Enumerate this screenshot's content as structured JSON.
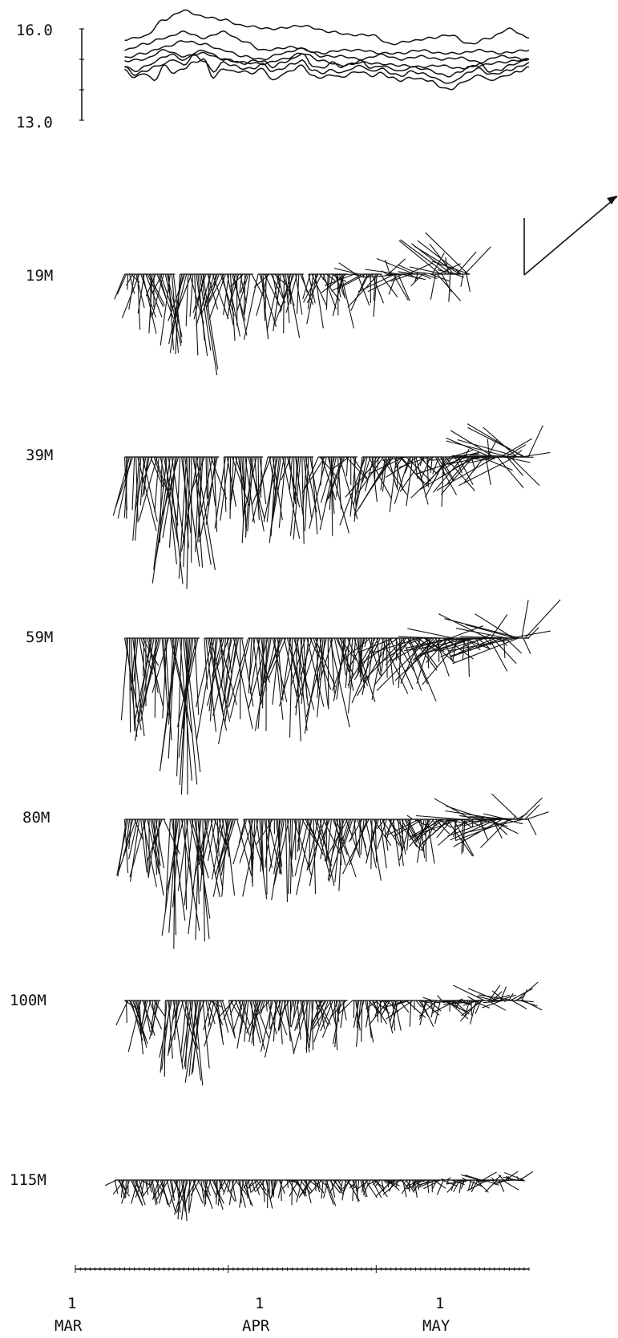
{
  "chart_data": [
    {
      "type": "line",
      "title": "",
      "ylabel": "",
      "y_tick_labels": [
        "16.0",
        "13.0"
      ],
      "ylim": [
        13.0,
        16.0
      ],
      "grid": false,
      "x_tick_labels": [
        {
          "day": "1",
          "month": "MAR"
        },
        {
          "day": "1",
          "month": "APR"
        },
        {
          "day": "1",
          "month": "MAY"
        }
      ],
      "x_range_days_from_mar1": [
        0,
        92
      ],
      "x_data_range_days_from_mar1": [
        10,
        92
      ],
      "series": [
        {
          "anchors": [
            [
              10,
              15.65
            ],
            [
              14,
              15.75
            ],
            [
              18,
              16.3
            ],
            [
              22,
              16.6
            ],
            [
              26,
              16.4
            ],
            [
              30,
              16.3
            ],
            [
              34,
              16.1
            ],
            [
              40,
              16.0
            ],
            [
              46,
              16.1
            ],
            [
              52,
              15.9
            ],
            [
              56,
              15.8
            ],
            [
              60,
              15.8
            ],
            [
              64,
              15.5
            ],
            [
              68,
              15.6
            ],
            [
              72,
              15.7
            ],
            [
              76,
              15.8
            ],
            [
              80,
              15.5
            ],
            [
              84,
              15.7
            ],
            [
              88,
              16.0
            ],
            [
              92,
              15.7
            ]
          ]
        },
        {
          "anchors": [
            [
              10,
              15.3
            ],
            [
              14,
              15.5
            ],
            [
              18,
              15.7
            ],
            [
              22,
              15.9
            ],
            [
              26,
              15.7
            ],
            [
              30,
              15.9
            ],
            [
              34,
              15.6
            ],
            [
              38,
              15.3
            ],
            [
              44,
              15.4
            ],
            [
              50,
              15.2
            ],
            [
              54,
              15.3
            ],
            [
              58,
              15.3
            ],
            [
              62,
              15.2
            ],
            [
              66,
              15.2
            ],
            [
              70,
              15.3
            ],
            [
              74,
              15.2
            ],
            [
              78,
              15.2
            ],
            [
              82,
              15.3
            ],
            [
              86,
              15.2
            ],
            [
              92,
              15.3
            ]
          ]
        },
        {
          "anchors": [
            [
              10,
              15.05
            ],
            [
              14,
              15.2
            ],
            [
              18,
              15.4
            ],
            [
              22,
              15.6
            ],
            [
              26,
              15.5
            ],
            [
              30,
              15.3
            ],
            [
              34,
              15.1
            ],
            [
              38,
              15.0
            ],
            [
              42,
              15.2
            ],
            [
              46,
              15.35
            ],
            [
              50,
              15.1
            ],
            [
              54,
              15.1
            ],
            [
              58,
              15.0
            ],
            [
              62,
              15.15
            ],
            [
              66,
              15.0
            ],
            [
              70,
              15.1
            ],
            [
              74,
              15.0
            ],
            [
              78,
              15.05
            ],
            [
              82,
              14.9
            ],
            [
              86,
              15.1
            ],
            [
              92,
              15.0
            ]
          ]
        },
        {
          "anchors": [
            [
              10,
              14.95
            ],
            [
              14,
              15.0
            ],
            [
              18,
              15.3
            ],
            [
              22,
              15.1
            ],
            [
              26,
              15.2
            ],
            [
              30,
              15.0
            ],
            [
              34,
              14.9
            ],
            [
              38,
              14.85
            ],
            [
              42,
              15.0
            ],
            [
              46,
              15.2
            ],
            [
              50,
              14.95
            ],
            [
              54,
              14.8
            ],
            [
              58,
              14.9
            ],
            [
              62,
              14.85
            ],
            [
              66,
              14.8
            ],
            [
              70,
              14.75
            ],
            [
              74,
              14.8
            ],
            [
              78,
              14.7
            ],
            [
              82,
              14.8
            ],
            [
              86,
              14.9
            ],
            [
              92,
              15.0
            ]
          ]
        },
        {
          "anchors": [
            [
              10,
              14.8
            ],
            [
              12,
              14.6
            ],
            [
              14,
              14.75
            ],
            [
              16,
              14.9
            ],
            [
              18,
              15.1
            ],
            [
              20,
              15.15
            ],
            [
              22,
              14.95
            ],
            [
              24,
              15.2
            ],
            [
              26,
              15.3
            ],
            [
              28,
              15.15
            ],
            [
              30,
              15.0
            ],
            [
              32,
              14.95
            ],
            [
              34,
              14.85
            ],
            [
              36,
              14.95
            ],
            [
              38,
              14.95
            ],
            [
              40,
              14.75
            ],
            [
              42,
              14.9
            ],
            [
              44,
              15.0
            ],
            [
              46,
              15.2
            ],
            [
              48,
              14.8
            ],
            [
              50,
              14.7
            ],
            [
              52,
              14.9
            ],
            [
              54,
              14.75
            ],
            [
              56,
              14.85
            ],
            [
              58,
              14.95
            ],
            [
              60,
              14.7
            ],
            [
              62,
              14.8
            ],
            [
              64,
              14.7
            ],
            [
              66,
              14.6
            ],
            [
              68,
              14.75
            ],
            [
              70,
              14.7
            ],
            [
              72,
              14.65
            ],
            [
              74,
              14.5
            ],
            [
              76,
              14.45
            ],
            [
              78,
              14.6
            ],
            [
              80,
              14.75
            ],
            [
              82,
              14.85
            ],
            [
              84,
              14.6
            ],
            [
              86,
              14.65
            ],
            [
              88,
              14.8
            ],
            [
              90,
              14.9
            ],
            [
              92,
              15.0
            ]
          ]
        },
        {
          "anchors": [
            [
              10,
              14.75
            ],
            [
              12,
              14.5
            ],
            [
              14,
              14.6
            ],
            [
              16,
              14.75
            ],
            [
              18,
              14.85
            ],
            [
              20,
              15.0
            ],
            [
              22,
              14.8
            ],
            [
              24,
              15.15
            ],
            [
              26,
              14.95
            ],
            [
              28,
              14.6
            ],
            [
              30,
              14.9
            ],
            [
              32,
              14.8
            ],
            [
              34,
              14.7
            ],
            [
              36,
              14.7
            ],
            [
              38,
              14.85
            ],
            [
              40,
              14.6
            ],
            [
              42,
              14.7
            ],
            [
              44,
              14.85
            ],
            [
              46,
              14.95
            ],
            [
              48,
              14.65
            ],
            [
              50,
              14.55
            ],
            [
              52,
              14.65
            ],
            [
              54,
              14.55
            ],
            [
              56,
              14.7
            ],
            [
              58,
              14.8
            ],
            [
              60,
              14.6
            ],
            [
              62,
              14.7
            ],
            [
              64,
              14.55
            ],
            [
              66,
              14.45
            ],
            [
              68,
              14.6
            ],
            [
              70,
              14.55
            ],
            [
              72,
              14.45
            ],
            [
              74,
              14.3
            ],
            [
              76,
              14.2
            ],
            [
              78,
              14.4
            ],
            [
              80,
              14.6
            ],
            [
              82,
              14.7
            ],
            [
              84,
              14.5
            ],
            [
              86,
              14.55
            ],
            [
              88,
              14.65
            ],
            [
              90,
              14.75
            ],
            [
              92,
              14.9
            ]
          ]
        },
        {
          "anchors": [
            [
              10,
              14.65
            ],
            [
              12,
              14.4
            ],
            [
              14,
              14.55
            ],
            [
              16,
              14.3
            ],
            [
              18,
              14.8
            ],
            [
              20,
              14.55
            ],
            [
              22,
              14.7
            ],
            [
              24,
              14.9
            ],
            [
              26,
              15.0
            ],
            [
              28,
              14.4
            ],
            [
              30,
              14.7
            ],
            [
              32,
              14.6
            ],
            [
              34,
              14.6
            ],
            [
              36,
              14.55
            ],
            [
              38,
              14.7
            ],
            [
              40,
              14.3
            ],
            [
              42,
              14.5
            ],
            [
              44,
              14.65
            ],
            [
              46,
              14.8
            ],
            [
              48,
              14.45
            ],
            [
              50,
              14.4
            ],
            [
              52,
              14.5
            ],
            [
              54,
              14.4
            ],
            [
              56,
              14.55
            ],
            [
              58,
              14.6
            ],
            [
              60,
              14.45
            ],
            [
              62,
              14.55
            ],
            [
              64,
              14.4
            ],
            [
              66,
              14.3
            ],
            [
              68,
              14.4
            ],
            [
              70,
              14.35
            ],
            [
              72,
              14.3
            ],
            [
              74,
              14.1
            ],
            [
              76,
              14.0
            ],
            [
              78,
              14.2
            ],
            [
              80,
              14.35
            ],
            [
              82,
              14.5
            ],
            [
              84,
              14.3
            ],
            [
              86,
              14.4
            ],
            [
              88,
              14.5
            ],
            [
              90,
              14.6
            ],
            [
              92,
              14.75
            ]
          ]
        }
      ]
    },
    {
      "type": "stick-vector",
      "title": "",
      "xlabel": "",
      "ylabel": "",
      "depth_labels": [
        "19M",
        "39M",
        "59M",
        "80M",
        "100M",
        "115M"
      ],
      "scale_arrow": true,
      "x_range_days_from_mar1": [
        0,
        92
      ],
      "note_values": "",
      "series": [
        {
          "name": "19M",
          "start_day": 10,
          "end_day": 80,
          "gap_days": [
            [
              20,
              21
            ],
            [
              36,
              37
            ],
            [
              46,
              47
            ],
            [
              55,
              56
            ],
            [
              62,
              63
            ],
            [
              71,
              72
            ]
          ],
          "amp_u": 0.3,
          "amp_v": 0.3,
          "bias_v": -0.55,
          "late_bias_v": 0.25,
          "late_bias_u": 0.55,
          "seed": 3
        },
        {
          "name": "39M",
          "start_day": 10,
          "end_day": 92,
          "gap_days": [
            [
              29,
              30
            ],
            [
              38,
              39
            ],
            [
              48,
              49
            ],
            [
              57,
              58
            ]
          ],
          "amp_u": 0.3,
          "amp_v": 0.3,
          "bias_v": -0.75,
          "late_bias_v": 0.2,
          "late_bias_u": 0.75,
          "seed": 7
        },
        {
          "name": "59M",
          "start_day": 10,
          "end_day": 92,
          "gap_days": [
            [
              25,
              26
            ],
            [
              34,
              35
            ]
          ],
          "amp_u": 0.3,
          "amp_v": 0.3,
          "bias_v": -0.85,
          "late_bias_v": 0.2,
          "late_bias_u": 0.85,
          "seed": 11
        },
        {
          "name": "80M",
          "start_day": 10,
          "end_day": 92,
          "gap_days": [
            [
              18,
              19
            ],
            [
              33,
              34
            ]
          ],
          "amp_u": 0.3,
          "amp_v": 0.3,
          "bias_v": -0.75,
          "late_bias_v": 0.15,
          "late_bias_u": 0.75,
          "seed": 19
        },
        {
          "name": "100M",
          "start_day": 10,
          "end_day": 91,
          "gap_days": [
            [
              17,
              18
            ],
            [
              30,
              31
            ],
            [
              55,
              56
            ]
          ],
          "amp_u": 0.3,
          "amp_v": 0.28,
          "bias_v": -0.55,
          "late_bias_v": 0.1,
          "late_bias_u": 0.45,
          "seed": 23
        },
        {
          "name": "115M",
          "start_day": 8,
          "end_day": 91,
          "gap_days": [],
          "amp_u": 0.3,
          "amp_v": 0.22,
          "bias_v": -0.35,
          "late_bias_v": 0.05,
          "late_bias_u": 0.35,
          "seed": 31
        }
      ]
    }
  ]
}
